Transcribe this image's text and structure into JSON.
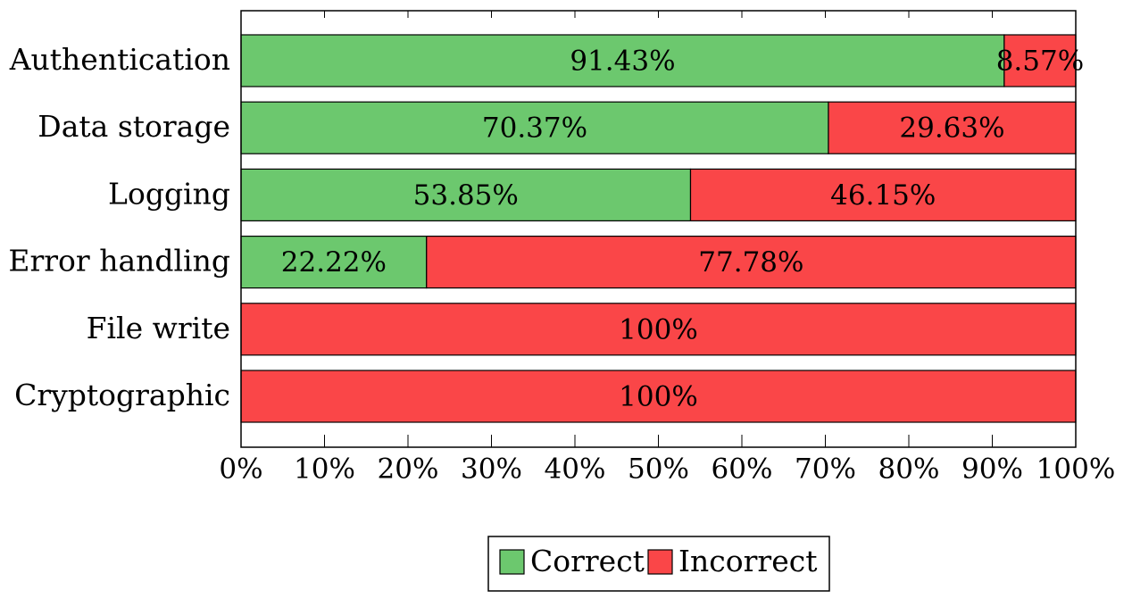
{
  "chart_data": {
    "type": "bar",
    "orientation": "horizontal",
    "stacked": true,
    "categories": [
      "Authentication",
      "Data storage",
      "Logging",
      "Error handling",
      "File write",
      "Cryptographic"
    ],
    "series": [
      {
        "name": "Correct",
        "color": "#6cc86e",
        "values": [
          91.43,
          70.37,
          53.85,
          22.22,
          0,
          0
        ],
        "labels": [
          "91.43%",
          "70.37%",
          "53.85%",
          "22.22%",
          "",
          ""
        ]
      },
      {
        "name": "Incorrect",
        "color": "#fa4648",
        "values": [
          8.57,
          29.63,
          46.15,
          77.78,
          100,
          100
        ],
        "labels": [
          "8.57%",
          "29.63%",
          "46.15%",
          "77.78%",
          "100%",
          "100%"
        ]
      }
    ],
    "xlim": [
      0,
      100
    ],
    "xticks": [
      0,
      10,
      20,
      30,
      40,
      50,
      60,
      70,
      80,
      90,
      100
    ],
    "xtick_labels": [
      "0%",
      "10%",
      "20%",
      "30%",
      "40%",
      "50%",
      "60%",
      "70%",
      "80%",
      "90%",
      "100%"
    ],
    "title": "",
    "xlabel": "",
    "ylabel": "",
    "grid": false,
    "legend_position": "bottom-center"
  }
}
